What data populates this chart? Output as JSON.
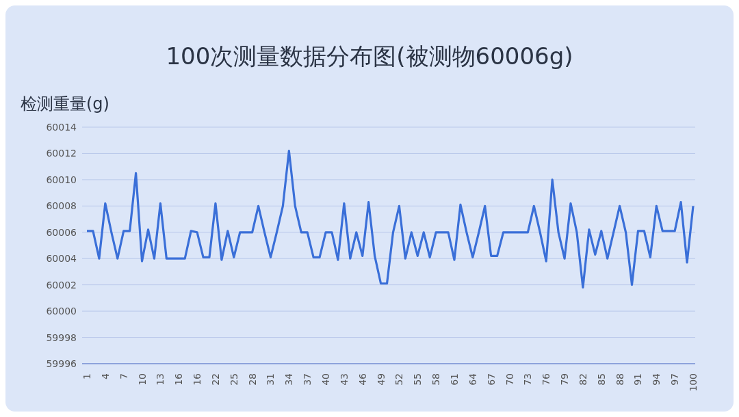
{
  "chart_data": {
    "type": "line",
    "title": "100次测量数据分布图(被测物60006g)",
    "ylabel": "检测重量(g)",
    "categories": [
      "1",
      null,
      null,
      "4",
      null,
      null,
      "7",
      null,
      null,
      "10",
      null,
      null,
      "13",
      null,
      null,
      "16",
      null,
      null,
      "16",
      null,
      null,
      "22",
      null,
      null,
      "25",
      null,
      null,
      "28",
      null,
      null,
      "31",
      null,
      null,
      "34",
      null,
      null,
      "37",
      null,
      null,
      "40",
      null,
      null,
      "43",
      null,
      null,
      "46",
      null,
      null,
      "49",
      null,
      null,
      "52",
      null,
      null,
      "55",
      null,
      null,
      "58",
      null,
      null,
      "61",
      null,
      null,
      "64",
      null,
      null,
      "67",
      null,
      null,
      "70",
      null,
      null,
      "73",
      null,
      null,
      "76",
      null,
      null,
      "79",
      null,
      null,
      "82",
      null,
      null,
      "85",
      null,
      null,
      "88",
      null,
      null,
      "91",
      null,
      null,
      "94",
      null,
      null,
      "97",
      null,
      null,
      "100"
    ],
    "series": [
      {
        "color": "#3a6fd8",
        "values": [
          60006.1,
          60006.1,
          60004,
          60008.2,
          60006,
          60004,
          60006.1,
          60006.1,
          60010.5,
          60003.8,
          60006.2,
          60004,
          60008.2,
          60004,
          60004,
          60004,
          60004,
          60006.1,
          60006,
          60004.1,
          60004.1,
          60008.2,
          60003.9,
          60006.1,
          60004.1,
          60006,
          60006,
          60006,
          60008,
          60006,
          60004.1,
          60006,
          60008,
          60012.2,
          60008,
          60006,
          60006,
          60004.1,
          60004.1,
          60006,
          60006,
          60003.9,
          60008.2,
          60004,
          60006,
          60004.2,
          60008.3,
          60004.2,
          60002.1,
          60002.1,
          60006,
          60008,
          60004,
          60006,
          60004.2,
          60006,
          60004.1,
          60006,
          60006,
          60006,
          60003.9,
          60008.1,
          60006,
          60004.1,
          60006,
          60008,
          60004.2,
          60004.2,
          60006,
          60006,
          60006,
          60006,
          60006,
          60008,
          60006,
          60003.8,
          60010,
          60006,
          60004,
          60008.2,
          60006,
          60001.8,
          60006.2,
          60004.3,
          60006.1,
          60004,
          60006,
          60008,
          60006,
          60002,
          60006.1,
          60006.1,
          60004.1,
          60008,
          60006.1,
          60006.1,
          60006.1,
          60008.3,
          60003.7,
          60008
        ]
      }
    ],
    "ylim": [
      59996,
      60014
    ],
    "yticks": [
      59996,
      59998,
      60000,
      60002,
      60004,
      60006,
      60008,
      60010,
      60012,
      60014
    ],
    "grid": "y",
    "marker": "none",
    "line_style": "solid",
    "legend": false
  }
}
